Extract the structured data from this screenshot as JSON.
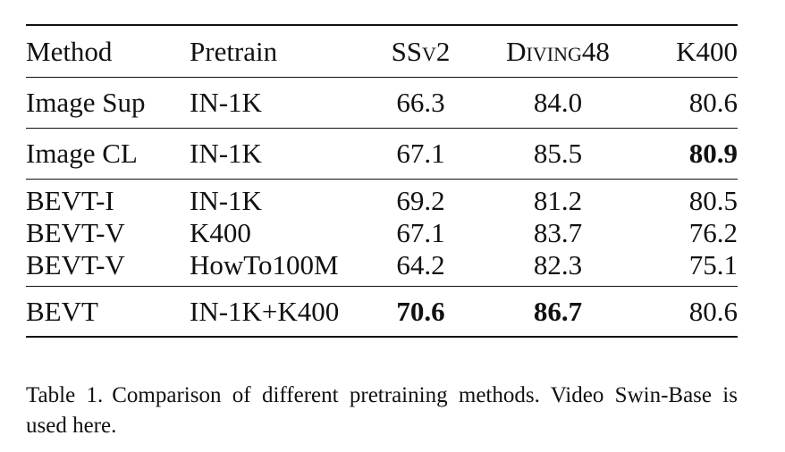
{
  "table": {
    "headers": {
      "method": "Method",
      "pretrain": "Pretrain",
      "ssv2": "SSv2",
      "diving48": "Diving48",
      "k400": "K400"
    },
    "rows": [
      {
        "method": "Image Sup",
        "pretrain": "IN-1K",
        "ssv2": "66.3",
        "diving48": "84.0",
        "k400": "80.6"
      },
      {
        "method": "Image CL",
        "pretrain": "IN-1K",
        "ssv2": "67.1",
        "diving48": "85.5",
        "k400": "80.9"
      },
      {
        "method": "BEVT-I",
        "pretrain": "IN-1K",
        "ssv2": "69.2",
        "diving48": "81.2",
        "k400": "80.5"
      },
      {
        "method": "BEVT-V",
        "pretrain": "K400",
        "ssv2": "67.1",
        "diving48": "83.7",
        "k400": "76.2"
      },
      {
        "method": "BEVT-V",
        "pretrain": "HowTo100M",
        "ssv2": "64.2",
        "diving48": "82.3",
        "k400": "75.1"
      },
      {
        "method": "BEVT",
        "pretrain": "IN-1K+K400",
        "ssv2": "70.6",
        "diving48": "86.7",
        "k400": "80.6"
      }
    ],
    "bold_cells": [
      "rows.1.k400",
      "rows.5.ssv2",
      "rows.5.diving48"
    ]
  },
  "caption": {
    "label": "Table 1.",
    "text": "Comparison of different pretraining methods. Video Swin-Base is used here."
  }
}
